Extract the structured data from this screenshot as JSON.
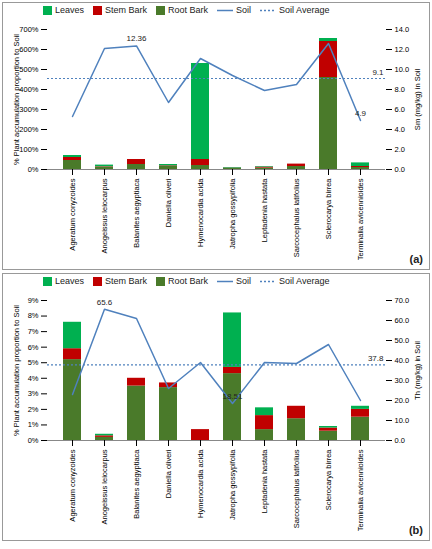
{
  "chart_data": [
    {
      "type": "bar",
      "title": "(a)",
      "stacked": true,
      "legend": "top",
      "categories": [
        "Ageratum conyzoides",
        "Anogeissus leiocarpus",
        "Balanites aegyptiaca",
        "Daniella oliveri",
        "Hymenocardia acida",
        "Jatropha gossypifolia",
        "Leptadenia hastata",
        "Sarcocephalus latifolius",
        "Sclerocarya birrea",
        "Terminalia avicennioides"
      ],
      "y_label": "% Plant accumulation proportion to Soil",
      "y2_label": "Sm (mg/kg) in Soil",
      "ylim": [
        0,
        700
      ],
      "yticks": [
        {
          "value": 0,
          "label": "0%"
        },
        {
          "value": 100,
          "label": "100%"
        },
        {
          "value": 200,
          "label": "200%"
        },
        {
          "value": 300,
          "label": "300%"
        },
        {
          "value": 400,
          "label": "400%"
        },
        {
          "value": 500,
          "label": "500%"
        },
        {
          "value": 600,
          "label": "600%"
        },
        {
          "value": 700,
          "label": "700%"
        }
      ],
      "y2lim": [
        0,
        14
      ],
      "y2ticks": [
        {
          "value": 0,
          "label": "0.0"
        },
        {
          "value": 2,
          "label": "2.0"
        },
        {
          "value": 4,
          "label": "4.0"
        },
        {
          "value": 6,
          "label": "6.0"
        },
        {
          "value": 8,
          "label": "8.0"
        },
        {
          "value": 10,
          "label": "10.0"
        },
        {
          "value": 12,
          "label": "12.0"
        },
        {
          "value": 14,
          "label": "14.0"
        }
      ],
      "series": [
        {
          "name": "Leaves",
          "color": "#00b050",
          "values": [
            10,
            8,
            0,
            7,
            480,
            3,
            3,
            0,
            15,
            18
          ]
        },
        {
          "name": "Stem Bark",
          "color": "#c00000",
          "values": [
            15,
            2,
            25,
            3,
            30,
            2,
            5,
            12,
            180,
            5
          ]
        },
        {
          "name": "Root Bark",
          "color": "#4a7a2a",
          "values": [
            45,
            12,
            25,
            15,
            20,
            5,
            7,
            15,
            460,
            10
          ]
        },
        {
          "name": "Soil",
          "type": "line",
          "axis": "y2",
          "color": "#4f81bd",
          "values": [
            5.3,
            12.1,
            12.36,
            6.7,
            11.1,
            9.4,
            7.9,
            8.5,
            12.6,
            4.9
          ]
        }
      ],
      "reference_lines": [
        {
          "name": "Soil Average",
          "value": 9.1,
          "axis": "y2",
          "color": "#4f81bd",
          "line_style": "dotted"
        }
      ],
      "annotations": [
        {
          "text": "12.36",
          "category": "Balanites aegyptiaca",
          "value": 12.36,
          "axis": "y2"
        },
        {
          "text": "4.9",
          "category": "Terminalia avicennioides",
          "value": 4.9,
          "axis": "y2"
        }
      ]
    },
    {
      "type": "bar",
      "title": "(b)",
      "stacked": true,
      "legend": "top",
      "categories": [
        "Ageratum conyzoides",
        "Anogeissus leiocarpus",
        "Balanites aegyptiaca",
        "Daniella oliveri",
        "Hymenocardia acida",
        "Jatropha gossypifolia",
        "Leptadenia hastata",
        "Sarcocephalus latifolius",
        "Sclerocarya birrea",
        "Terminalia avicennioides"
      ],
      "y_label": "% Plant accumulation proportion to Soil",
      "y2_label": "Th (mg/kg) in Soil",
      "ylim": [
        0,
        9
      ],
      "yticks": [
        {
          "value": 0,
          "label": "0%"
        },
        {
          "value": 1,
          "label": "1%"
        },
        {
          "value": 2,
          "label": "2%"
        },
        {
          "value": 3,
          "label": "3%"
        },
        {
          "value": 4,
          "label": "4%"
        },
        {
          "value": 5,
          "label": "5%"
        },
        {
          "value": 6,
          "label": "6%"
        },
        {
          "value": 7,
          "label": "7%"
        },
        {
          "value": 8,
          "label": "8%"
        },
        {
          "value": 9,
          "label": "9%"
        }
      ],
      "y2lim": [
        0,
        70
      ],
      "y2ticks": [
        {
          "value": 0,
          "label": "0.0"
        },
        {
          "value": 10,
          "label": "10.0"
        },
        {
          "value": 20,
          "label": "20.0"
        },
        {
          "value": 30,
          "label": "30.0"
        },
        {
          "value": 40,
          "label": "40.0"
        },
        {
          "value": 50,
          "label": "50.0"
        },
        {
          "value": 60,
          "label": "60.0"
        },
        {
          "value": 70,
          "label": "70.0"
        }
      ],
      "series": [
        {
          "name": "Leaves",
          "color": "#00b050",
          "values": [
            1.7,
            0.1,
            0,
            0,
            0,
            3.5,
            0.5,
            0,
            0.1,
            0.2
          ]
        },
        {
          "name": "Stem Bark",
          "color": "#c00000",
          "values": [
            0.7,
            0.1,
            0.5,
            0.3,
            0.7,
            0.4,
            0.9,
            0.8,
            0.2,
            0.5
          ]
        },
        {
          "name": "Root Bark",
          "color": "#4a7a2a",
          "values": [
            5.2,
            0.2,
            3.5,
            3.4,
            0,
            4.3,
            0.7,
            1.4,
            0.6,
            1.5
          ]
        },
        {
          "name": "Soil",
          "type": "line",
          "axis": "y2",
          "color": "#4f81bd",
          "values": [
            23,
            65.6,
            61,
            26,
            39,
            18.51,
            39,
            38.5,
            48,
            20
          ]
        }
      ],
      "reference_lines": [
        {
          "name": "Soil Average",
          "value": 37.8,
          "axis": "y2",
          "color": "#4f81bd",
          "line_style": "dotted"
        }
      ],
      "annotations": [
        {
          "text": "65.6",
          "category": "Anogeissus leiocarpus",
          "value": 65.6,
          "axis": "y2"
        },
        {
          "text": "18.51",
          "category": "Jatropha gossypifolia",
          "value": 18.51,
          "axis": "y2"
        }
      ]
    }
  ]
}
